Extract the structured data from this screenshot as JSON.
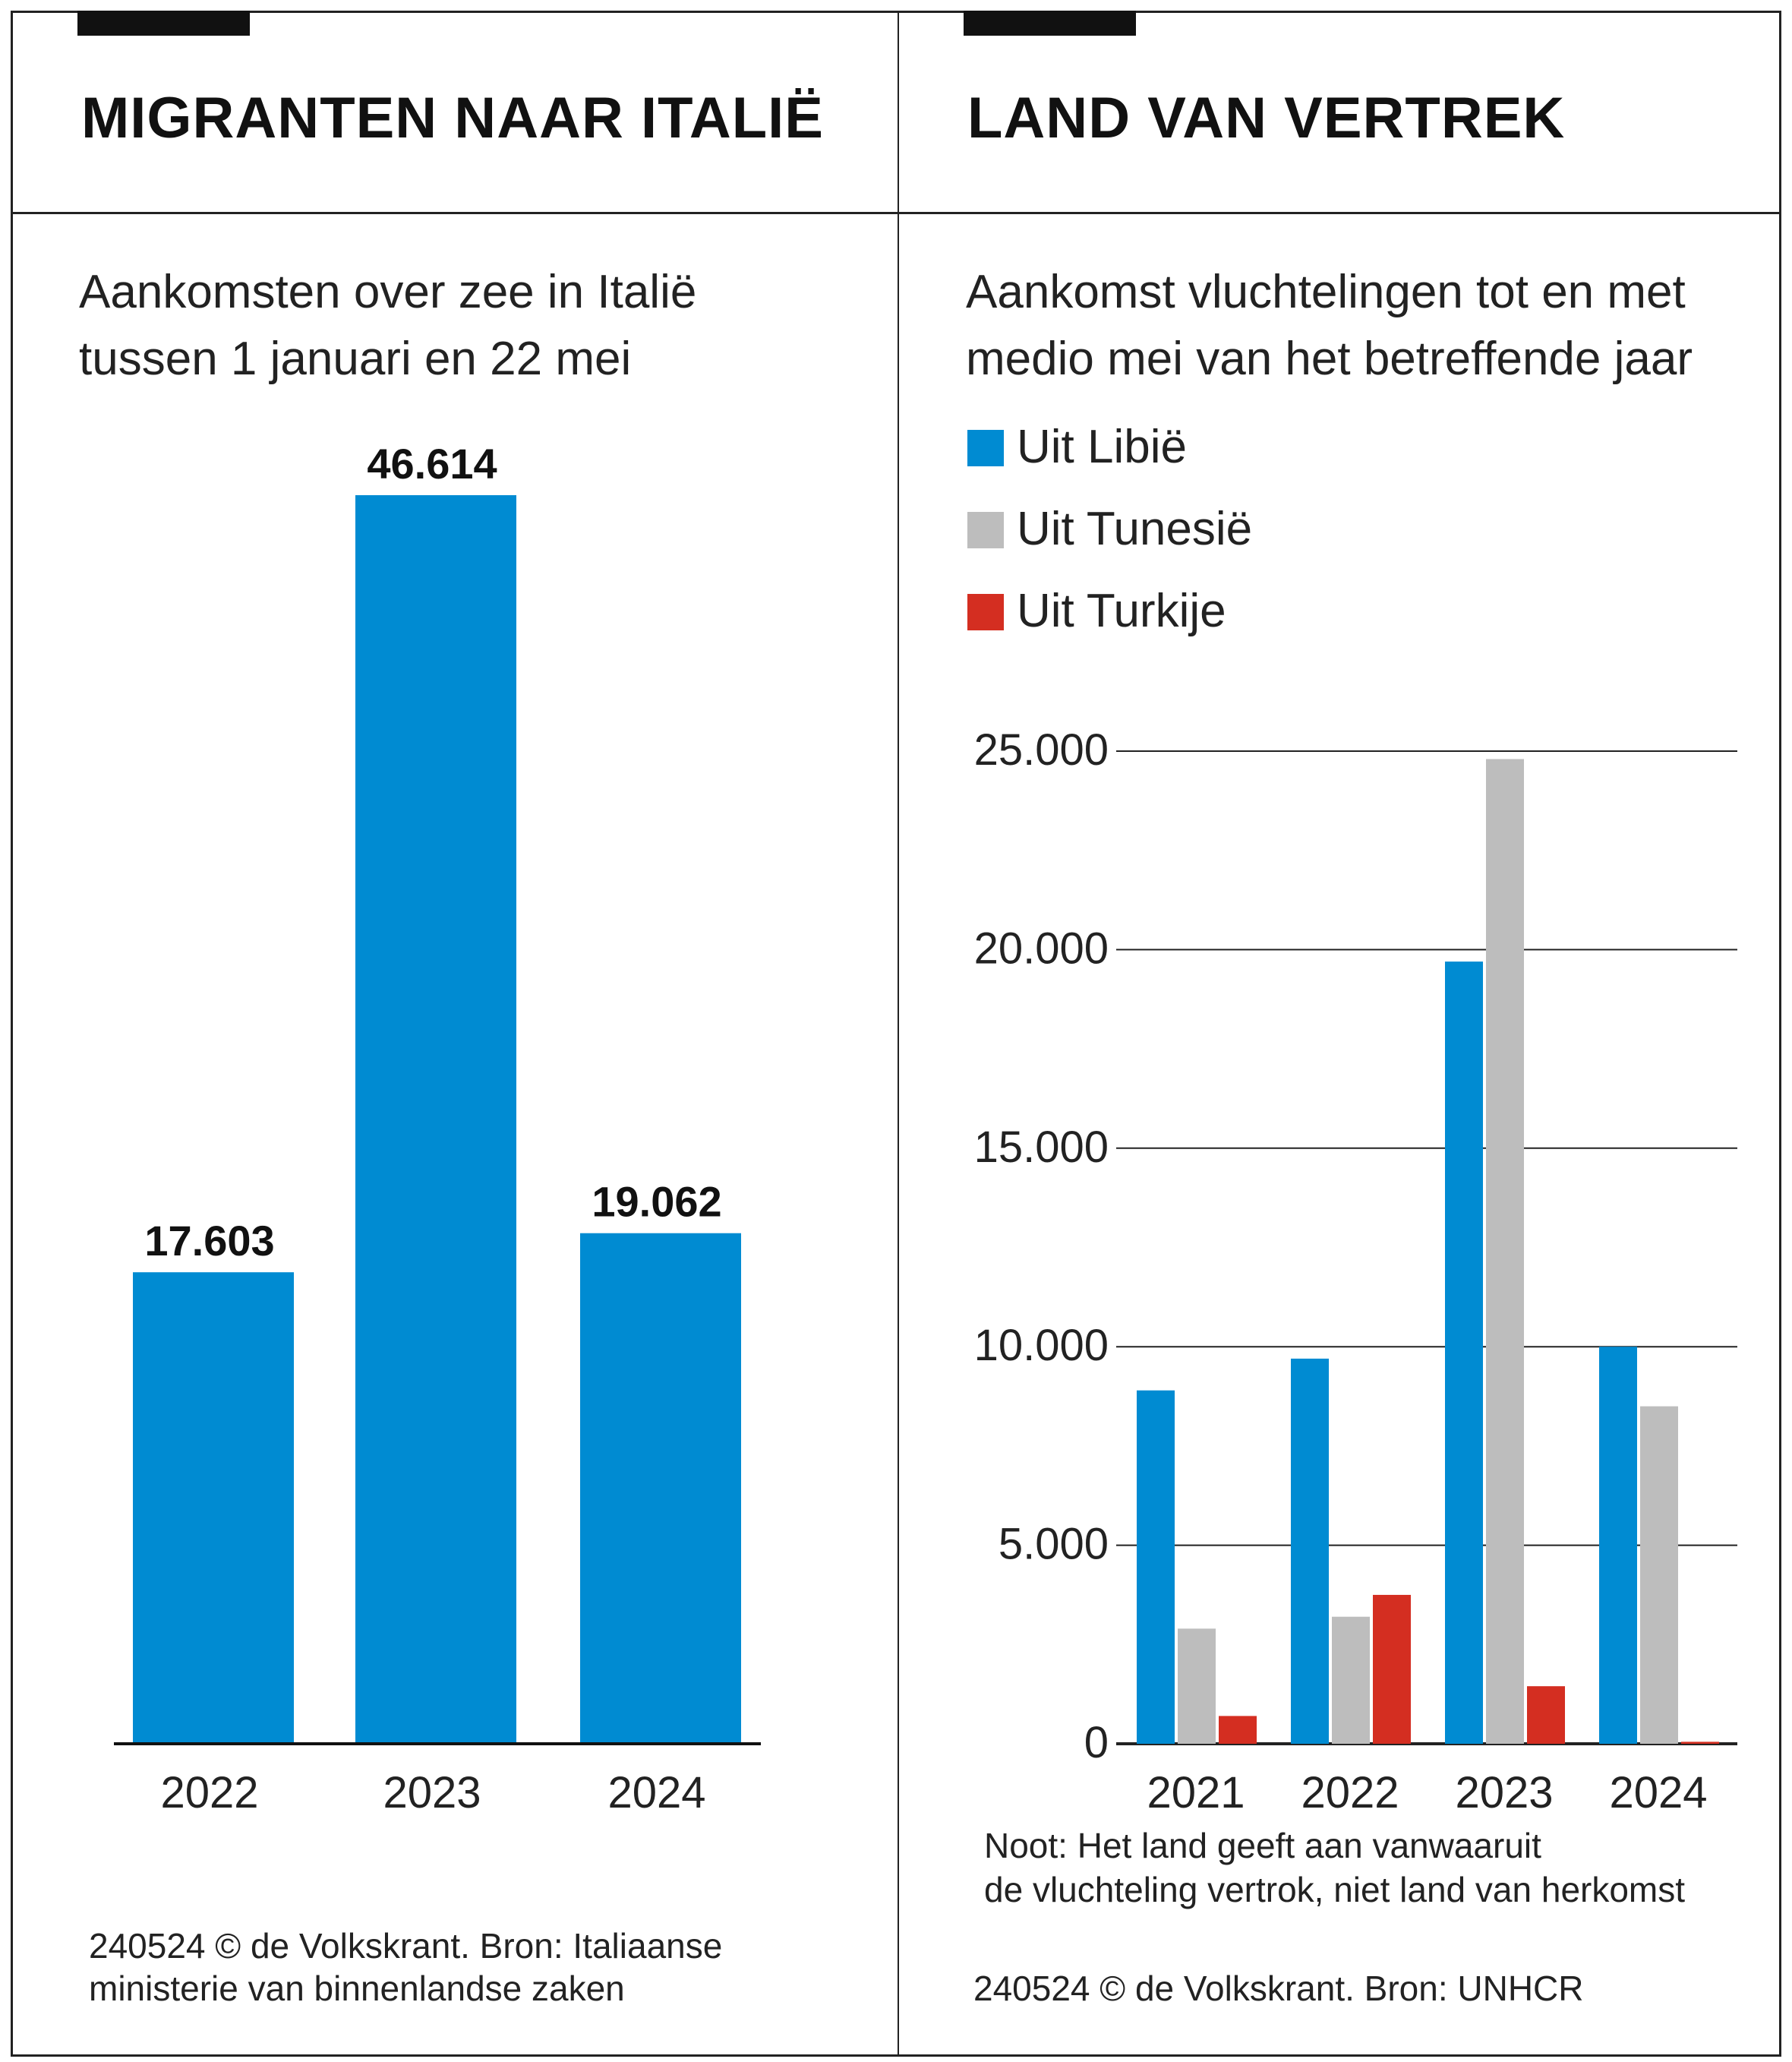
{
  "colors": {
    "libie": "#008bd2",
    "tunesie": "#bdbdbd",
    "turkije": "#d42e21",
    "bar_main": "#008bd2"
  },
  "left_panel": {
    "title": "MIGRANTEN NAAR ITALIË",
    "subtitle_line1": "Aankomsten over zee in Italië",
    "subtitle_line2": "tussen 1 januari en 22 mei",
    "source_line1": "240524 © de Volkskrant. Bron: Italiaanse",
    "source_line2": "ministerie van binnenlandse zaken"
  },
  "right_panel": {
    "title": "LAND VAN VERTREK",
    "subtitle_line1": "Aankomst vluchtelingen tot en met",
    "subtitle_line2": "medio mei van het betreffende jaar",
    "legend": [
      "Uit Libië",
      "Uit Tunesië",
      "Uit Turkije"
    ],
    "note_line1": "Noot: Het land geeft aan vanwaaruit",
    "note_line2": "de vluchteling vertrok, niet land van herkomst",
    "source": "240524 © de Volkskrant. Bron: UNHCR"
  },
  "chart_data": [
    {
      "type": "bar",
      "title": "Aankomsten over zee in Italië tussen 1 januari en 22 mei",
      "categories": [
        "2022",
        "2023",
        "2024"
      ],
      "values": [
        17603,
        46614,
        19062
      ],
      "value_labels": [
        "17.603",
        "46.614",
        "19.062"
      ],
      "xlabel": "",
      "ylabel": "",
      "ylim": [
        0,
        46614
      ],
      "grid": false
    },
    {
      "type": "bar",
      "title": "Aankomst vluchtelingen tot en met medio mei van het betreffende jaar",
      "categories": [
        "2021",
        "2022",
        "2023",
        "2024"
      ],
      "series": [
        {
          "name": "Uit Libië",
          "values": [
            8900,
            9700,
            19700,
            10000
          ]
        },
        {
          "name": "Uit Tunesië",
          "values": [
            2900,
            3200,
            24800,
            8500
          ]
        },
        {
          "name": "Uit Turkije",
          "values": [
            700,
            3750,
            1450,
            50
          ]
        }
      ],
      "yticks": [
        0,
        5000,
        10000,
        15000,
        20000,
        25000
      ],
      "ytick_labels": [
        "0",
        "5.000",
        "10.000",
        "15.000",
        "20.000",
        "25.000"
      ],
      "ylim": [
        0,
        25000
      ],
      "legend_position": "top-left",
      "grid": true
    }
  ]
}
